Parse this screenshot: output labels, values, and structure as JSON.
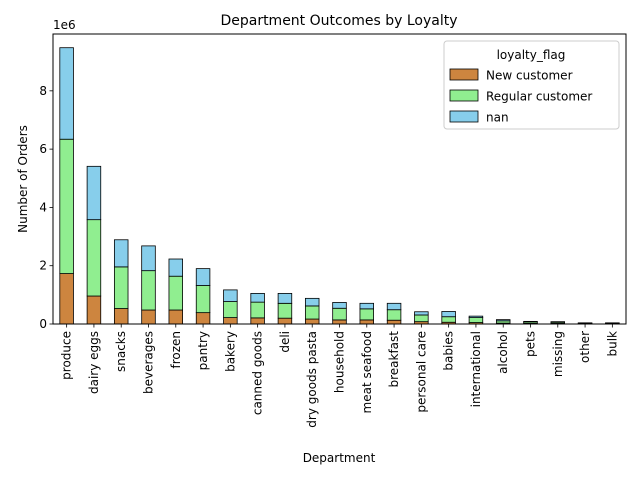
{
  "chart_data": {
    "type": "bar",
    "stacked": true,
    "title": "Department Outcomes by Loyalty",
    "xlabel": "Department",
    "ylabel": "Number of Orders",
    "y_offset_label": "1e6",
    "ylim": [
      0,
      9950000
    ],
    "yticks": [
      0,
      2000000,
      4000000,
      6000000,
      8000000
    ],
    "ytick_labels": [
      "0",
      "2",
      "4",
      "6",
      "8"
    ],
    "grid": false,
    "categories": [
      "produce",
      "dairy eggs",
      "snacks",
      "beverages",
      "frozen",
      "pantry",
      "bakery",
      "canned goods",
      "deli",
      "dry goods pasta",
      "household",
      "meat seafood",
      "breakfast",
      "personal care",
      "babies",
      "international",
      "alcohol",
      "pets",
      "missing",
      "other",
      "bulk"
    ],
    "legend": {
      "title": "loyalty_flag",
      "placement": "top-right"
    },
    "series": [
      {
        "name": "New customer",
        "color": "#cd853f",
        "values": [
          1730000,
          960000,
          530000,
          480000,
          480000,
          390000,
          220000,
          210000,
          200000,
          170000,
          140000,
          140000,
          130000,
          80000,
          60000,
          50000,
          30000,
          20000,
          20000,
          10000,
          10000
        ]
      },
      {
        "name": "Regular customer",
        "color": "#90ee90",
        "values": [
          4610000,
          2620000,
          1430000,
          1350000,
          1160000,
          930000,
          550000,
          540000,
          510000,
          450000,
          400000,
          380000,
          360000,
          230000,
          190000,
          170000,
          80000,
          50000,
          40000,
          20000,
          20000
        ]
      },
      {
        "name": "nan",
        "color": "#87ceeb",
        "values": [
          3140000,
          1830000,
          930000,
          850000,
          590000,
          580000,
          400000,
          300000,
          340000,
          260000,
          200000,
          190000,
          220000,
          110000,
          180000,
          50000,
          40000,
          20000,
          20000,
          10000,
          10000
        ]
      }
    ]
  }
}
